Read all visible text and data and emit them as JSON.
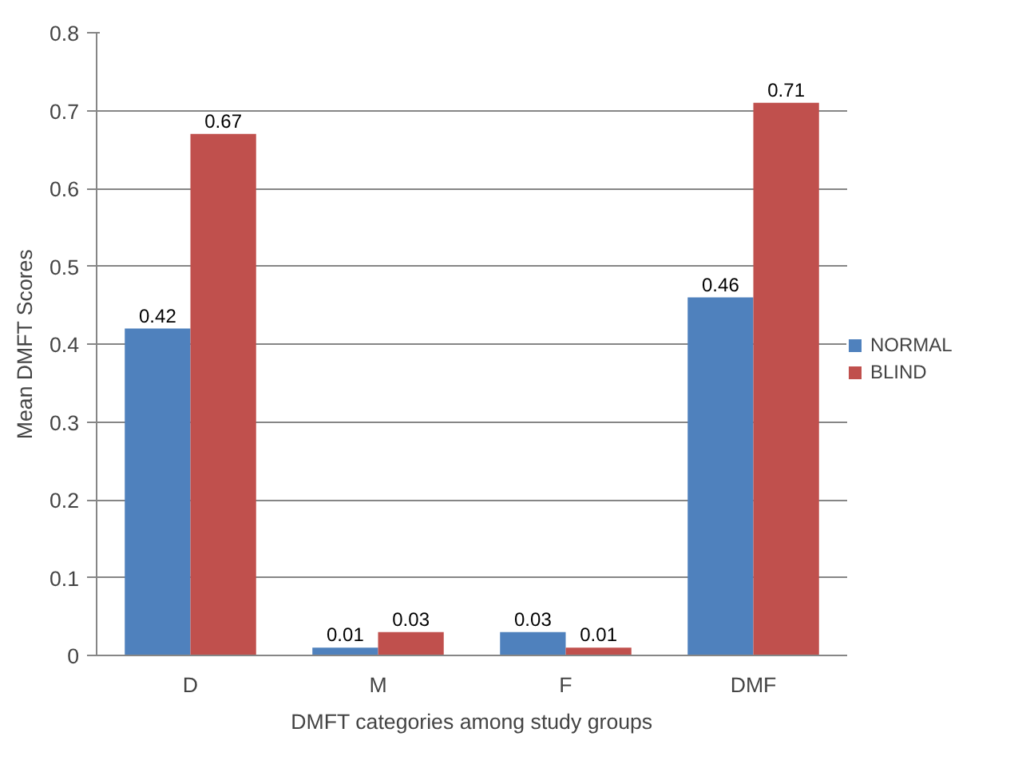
{
  "chart_data": {
    "type": "bar",
    "xlabel": "DMFT categories among study groups",
    "ylabel": "Mean DMFT Scores",
    "categories": [
      "D",
      "M",
      "F",
      "DMF"
    ],
    "series": [
      {
        "name": "NORMAL",
        "color": "#4f81bd",
        "values": [
          0.42,
          0.01,
          0.03,
          0.46
        ]
      },
      {
        "name": "BLIND",
        "color": "#c0504d",
        "values": [
          0.67,
          0.03,
          0.01,
          0.71
        ]
      }
    ],
    "ylim": [
      0,
      0.8
    ],
    "yticks": [
      0,
      0.1,
      0.2,
      0.3,
      0.4,
      0.5,
      0.6,
      0.7,
      0.8
    ],
    "grid": "y",
    "legend": "right",
    "data_labels": true
  }
}
